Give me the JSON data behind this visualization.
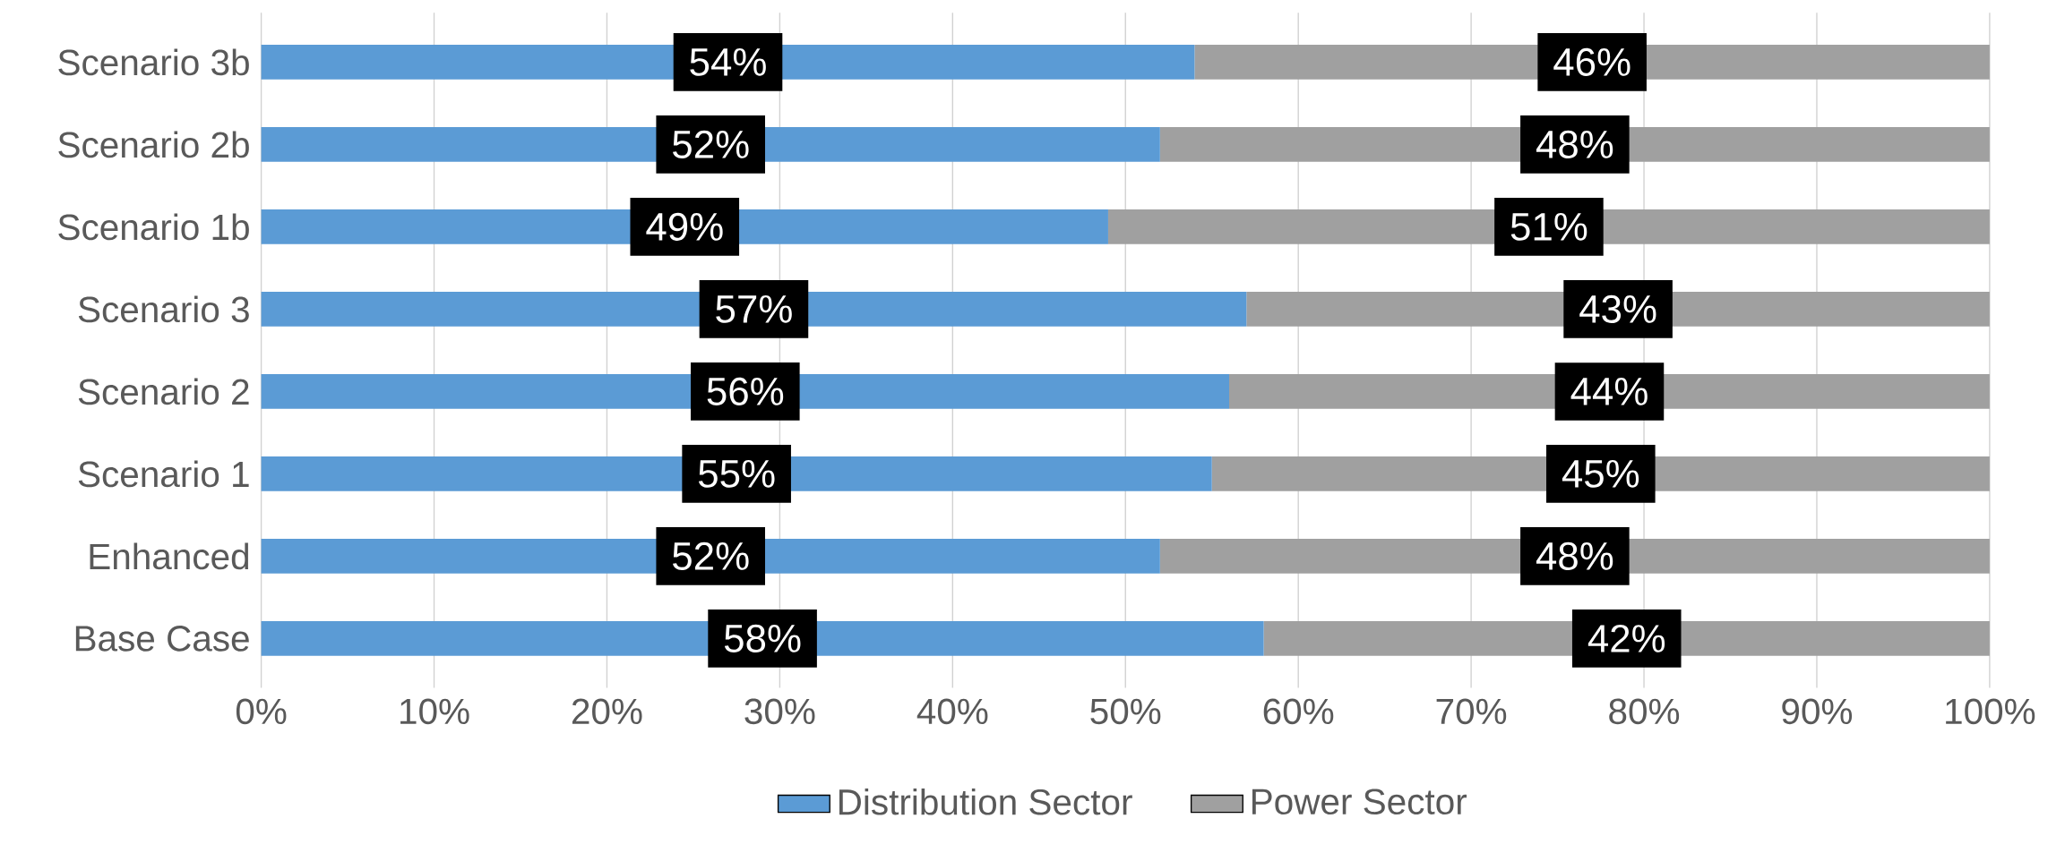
{
  "chart_data": {
    "type": "bar",
    "orientation": "horizontal",
    "stacked": true,
    "categories": [
      "Scenario 3b",
      "Scenario 2b",
      "Scenario 1b",
      "Scenario 3",
      "Scenario 2",
      "Scenario 1",
      "Enhanced",
      "Base Case"
    ],
    "series": [
      {
        "name": "Distribution Sector",
        "color": "#5b9bd5",
        "values": [
          54,
          52,
          49,
          57,
          56,
          55,
          52,
          58
        ],
        "value_labels": [
          "54%",
          "52%",
          "49%",
          "57%",
          "56%",
          "55%",
          "52%",
          "58%"
        ]
      },
      {
        "name": "Power Sector",
        "color": "#a0a0a0",
        "values": [
          46,
          48,
          51,
          43,
          44,
          45,
          48,
          42
        ],
        "value_labels": [
          "46%",
          "48%",
          "51%",
          "43%",
          "44%",
          "45%",
          "48%",
          "42%"
        ]
      }
    ],
    "xlim": [
      0,
      100
    ],
    "xticks": [
      {
        "value": 0,
        "label": "0%"
      },
      {
        "value": 10,
        "label": "10%"
      },
      {
        "value": 20,
        "label": "20%"
      },
      {
        "value": 30,
        "label": "30%"
      },
      {
        "value": 40,
        "label": "40%"
      },
      {
        "value": 50,
        "label": "50%"
      },
      {
        "value": 60,
        "label": "60%"
      },
      {
        "value": 70,
        "label": "70%"
      },
      {
        "value": 80,
        "label": "80%"
      },
      {
        "value": 90,
        "label": "90%"
      },
      {
        "value": 100,
        "label": "100%"
      }
    ],
    "grid": "x",
    "legend": "bottom"
  }
}
